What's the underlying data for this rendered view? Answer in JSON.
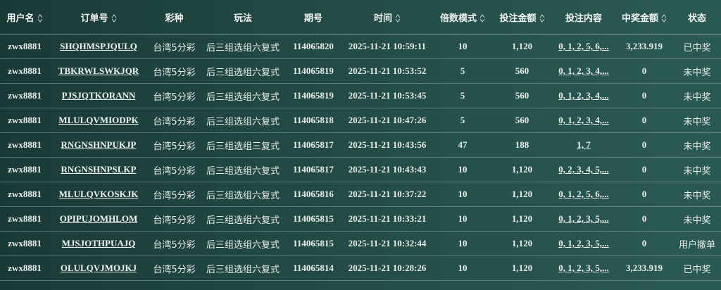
{
  "table": {
    "header": [
      "用户名",
      "订单号",
      "彩种",
      "玩法",
      "期号",
      "时间",
      "倍数模式",
      "投注金额",
      "投注内容",
      "中奖金额",
      "状态"
    ],
    "rows": [
      [
        "zwx8881",
        "SHQHMSPJQULQ",
        "台湾5分彩",
        "后三组选组六复式",
        "114065820",
        "2025-11-21 10:59:11",
        "10",
        "1,120",
        "0, 1, 2, 5, 6,...",
        "3,233.919",
        "已中奖"
      ],
      [
        "zwx8881",
        "TBKRWLSWKJQR",
        "台湾5分彩",
        "后三组选组六复式",
        "114065819",
        "2025-11-21 10:53:52",
        "5",
        "560",
        "0, 1, 2, 3, 4,...",
        "0",
        "未中奖"
      ],
      [
        "zwx8881",
        "PJSJQTKORANN",
        "台湾5分彩",
        "后三组选组六复式",
        "114065819",
        "2025-11-21 10:53:45",
        "5",
        "560",
        "0, 1, 2, 3, 4,...",
        "0",
        "未中奖"
      ],
      [
        "zwx8881",
        "MLULQVMIODPK",
        "台湾5分彩",
        "后三组选组六复式",
        "114065818",
        "2025-11-21 10:47:26",
        "5",
        "560",
        "0, 1, 2, 3, 4,...",
        "0",
        "未中奖"
      ],
      [
        "zwx8881",
        "RNGNSHNPUKJP",
        "台湾5分彩",
        "后三组选组三复式",
        "114065817",
        "2025-11-21 10:43:56",
        "47",
        "188",
        "1, 7",
        "0",
        "未中奖"
      ],
      [
        "zwx8881",
        "RNGNSHNPSLKP",
        "台湾5分彩",
        "后三组选组六复式",
        "114065817",
        "2025-11-21 10:43:43",
        "10",
        "1,120",
        "0, 2, 3, 4, 5,...",
        "0",
        "未中奖"
      ],
      [
        "zwx8881",
        "MLULQVKOSKJK",
        "台湾5分彩",
        "后三组选组六复式",
        "114065816",
        "2025-11-21 10:37:22",
        "10",
        "1,120",
        "0, 1, 2, 5, 6,...",
        "0",
        "未中奖"
      ],
      [
        "zwx8881",
        "OPIPUJOMHLOM",
        "台湾5分彩",
        "后三组选组六复式",
        "114065815",
        "2025-11-21 10:33:21",
        "10",
        "1,120",
        "0, 1, 2, 3, 5,...",
        "0",
        "未中奖"
      ],
      [
        "zwx8881",
        "MJSJOTHPUAJQ",
        "台湾5分彩",
        "后三组选组六复式",
        "114065815",
        "2025-11-21 10:32:44",
        "10",
        "1,120",
        "0, 1, 2, 3, 5,...",
        "0",
        "用户撤单"
      ],
      [
        "zwx8881",
        "OLULQVJMOJKJ",
        "台湾5分彩",
        "后三组选组六复式",
        "114065814",
        "2025-11-21 10:28:26",
        "10",
        "1,120",
        "0, 1, 2, 3, 5,...",
        "3,233.919",
        "已中奖"
      ]
    ]
  }
}
